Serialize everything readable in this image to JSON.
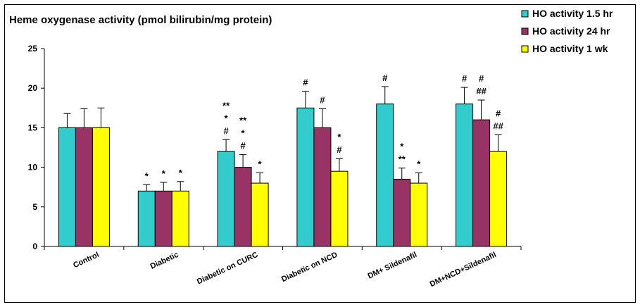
{
  "chart_data": {
    "type": "bar",
    "title": "Heme oxygenase activity (pmol bilirubin/mg protein)",
    "xlabel": "",
    "ylabel": "",
    "ylim": [
      0,
      25
    ],
    "yticks": [
      0,
      5,
      10,
      15,
      20,
      25
    ],
    "categories": [
      "Control",
      "Diabetic",
      "Diabetic on CURC",
      "Diabetic on NCD",
      "DM+ Sildenafil",
      "DM+NCD+Sildenafil"
    ],
    "legend_position": "top-right",
    "grid": false,
    "series": [
      {
        "name": "HO activity 1.5 hr",
        "color": "#33CCCC",
        "values": [
          15,
          7,
          12,
          17.5,
          18,
          18
        ],
        "errors": [
          1.8,
          0.8,
          1.5,
          2.1,
          2.2,
          2.1
        ]
      },
      {
        "name": "HO activity 24 hr",
        "color": "#993366",
        "values": [
          15,
          7,
          10,
          15,
          8.5,
          16
        ],
        "errors": [
          2.4,
          1.1,
          1.6,
          2.4,
          1.4,
          2.5
        ]
      },
      {
        "name": "HO activity 1 wk",
        "color": "#FFFF00",
        "values": [
          15,
          7,
          8,
          9.5,
          8,
          12
        ],
        "errors": [
          2.5,
          1.2,
          1.3,
          1.6,
          1.3,
          2.1
        ]
      }
    ],
    "annotations": [
      {
        "category": 1,
        "series": 0,
        "lines": [
          "*"
        ]
      },
      {
        "category": 1,
        "series": 1,
        "lines": [
          "*"
        ]
      },
      {
        "category": 1,
        "series": 2,
        "lines": [
          "*"
        ]
      },
      {
        "category": 2,
        "series": 0,
        "lines": [
          "**",
          "*",
          "#"
        ]
      },
      {
        "category": 2,
        "series": 1,
        "lines": [
          "**",
          "*",
          "#"
        ]
      },
      {
        "category": 2,
        "series": 2,
        "lines": [
          "*"
        ]
      },
      {
        "category": 3,
        "series": 0,
        "lines": [
          "#"
        ]
      },
      {
        "category": 3,
        "series": 1,
        "lines": [
          "#"
        ]
      },
      {
        "category": 3,
        "series": 2,
        "lines": [
          "*",
          "#"
        ]
      },
      {
        "category": 4,
        "series": 0,
        "lines": [
          "#"
        ]
      },
      {
        "category": 4,
        "series": 1,
        "lines": [
          "*",
          "**"
        ]
      },
      {
        "category": 4,
        "series": 2,
        "lines": [
          "*"
        ]
      },
      {
        "category": 5,
        "series": 0,
        "lines": [
          "#"
        ]
      },
      {
        "category": 5,
        "series": 1,
        "lines": [
          "#",
          "##"
        ]
      },
      {
        "category": 5,
        "series": 2,
        "lines": [
          "#",
          "##"
        ]
      }
    ]
  }
}
